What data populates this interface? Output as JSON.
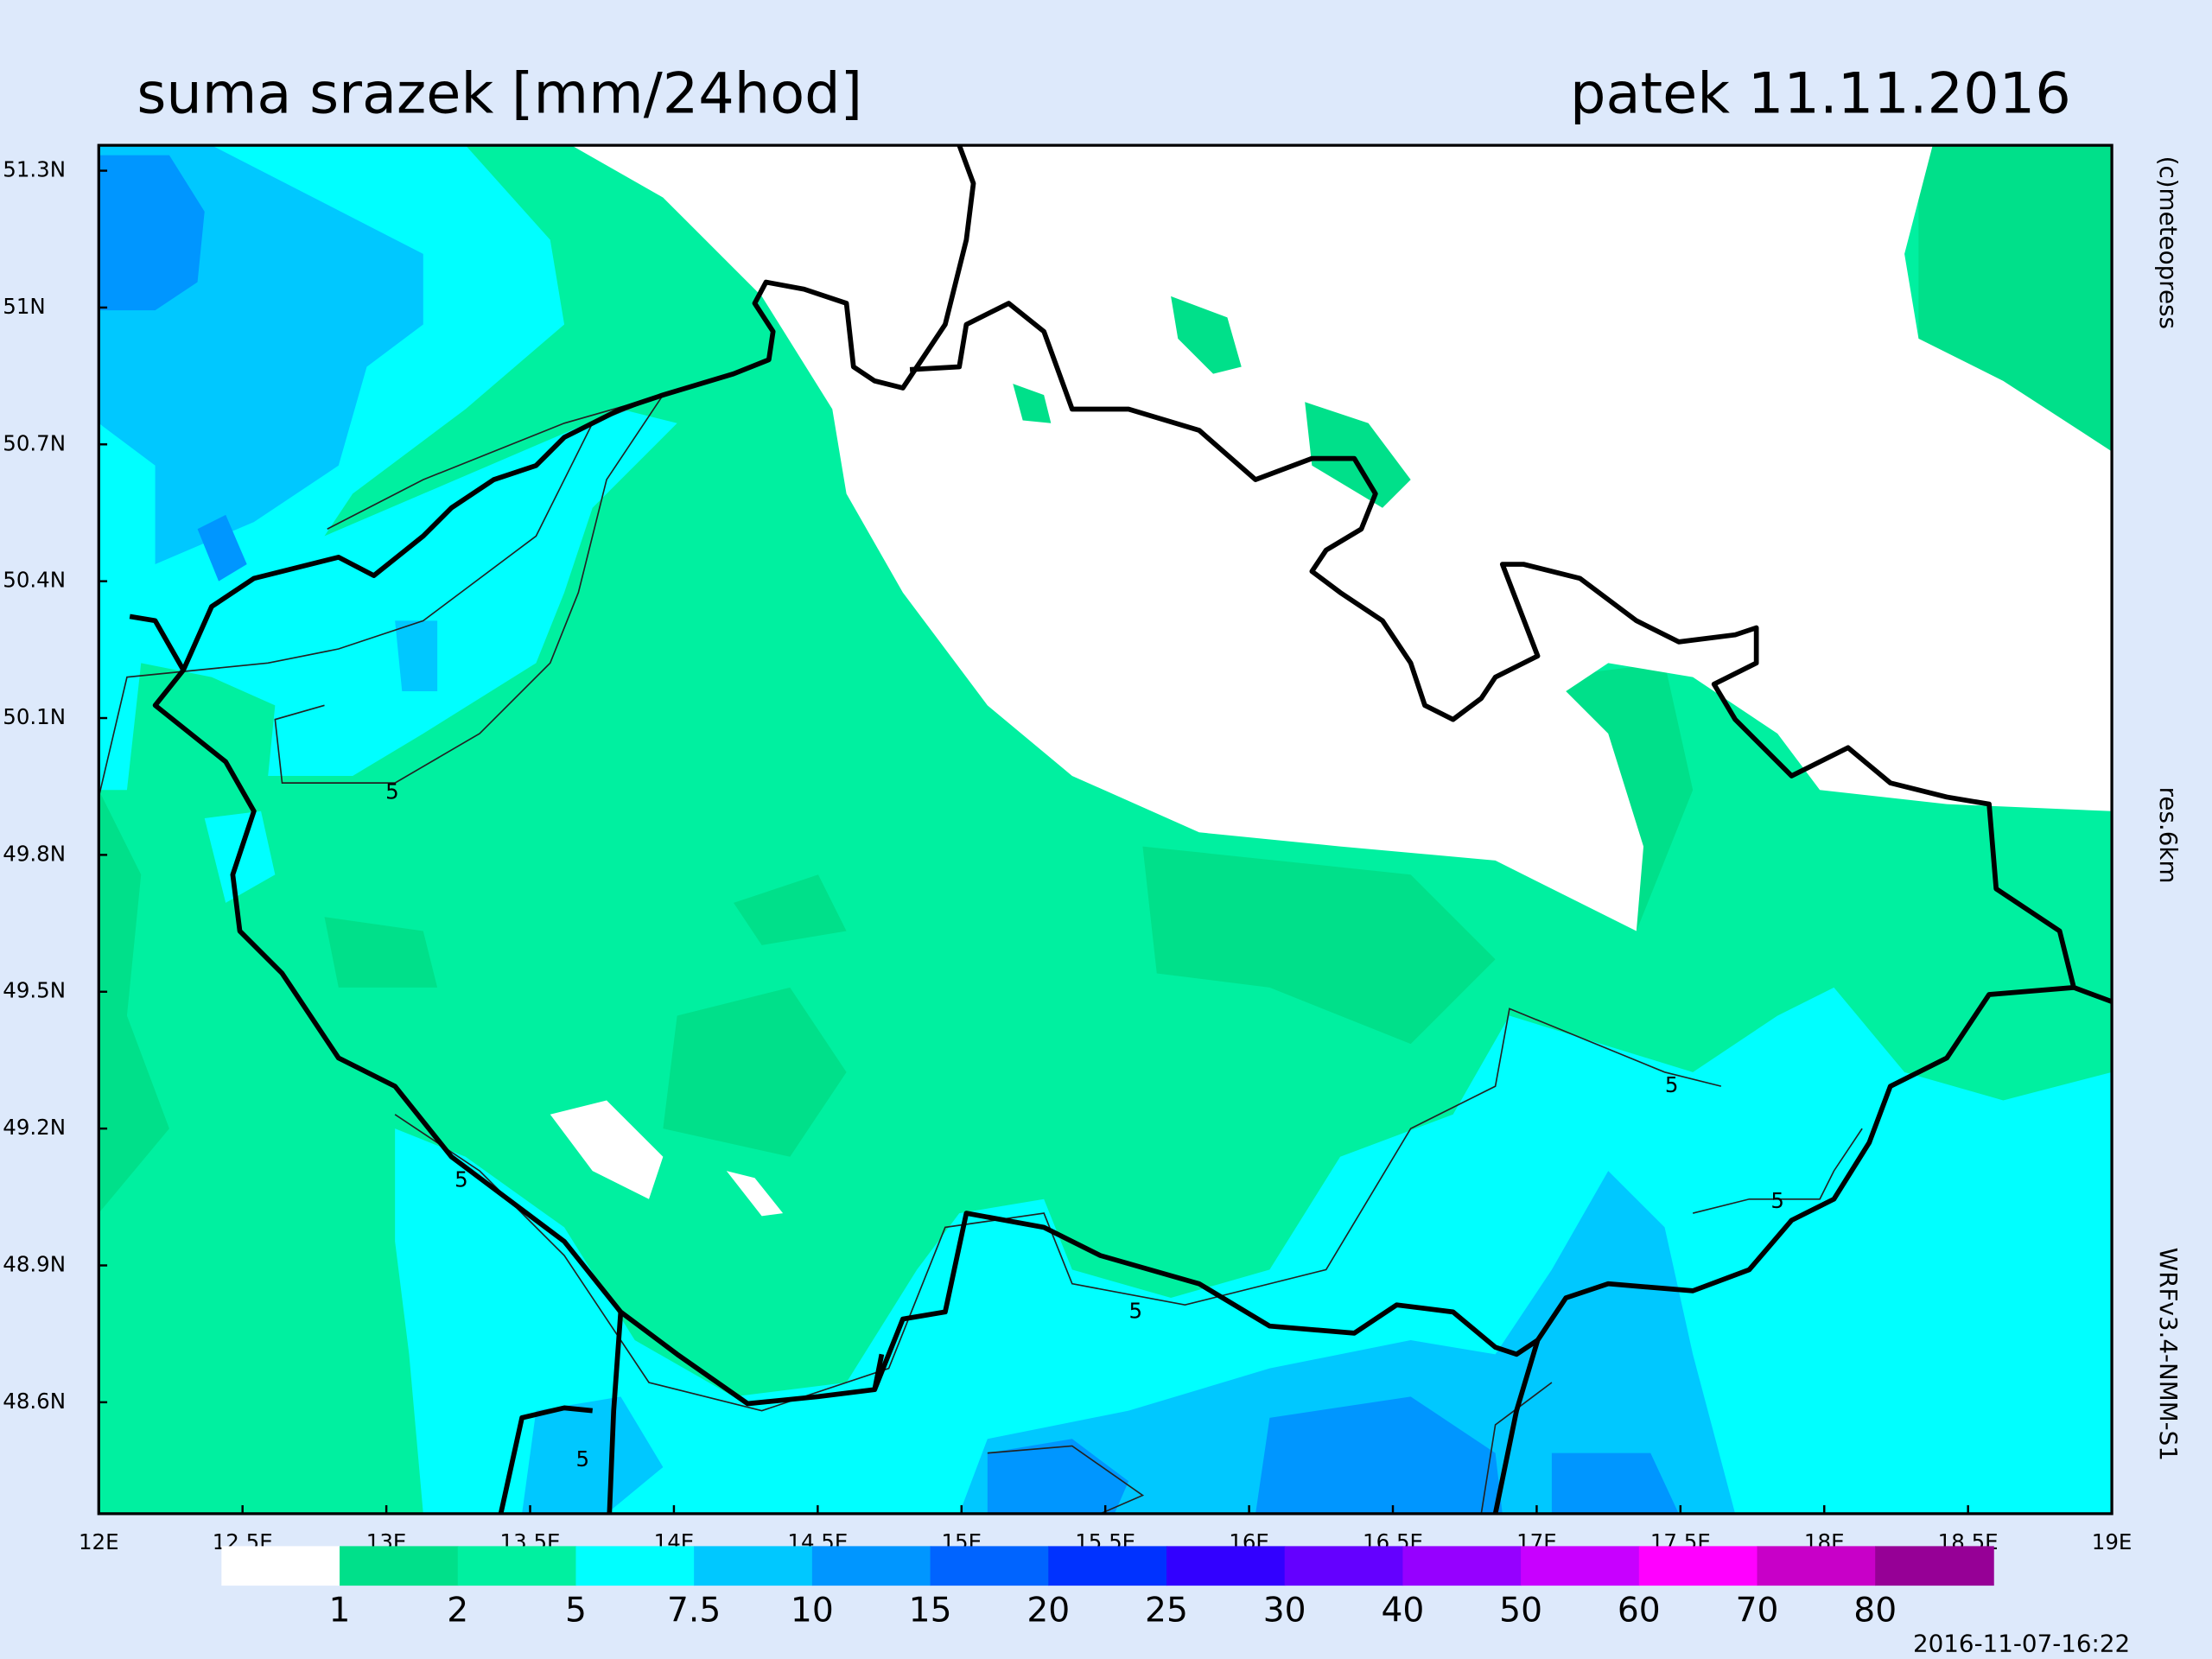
{
  "header": {
    "title": "suma srazek [mm/24hod]",
    "date": "patek 11.11.2016"
  },
  "map": {
    "lat_ticks": [
      "51.3N",
      "51N",
      "50.7N",
      "50.4N",
      "50.1N",
      "49.8N",
      "49.5N",
      "49.2N",
      "48.9N",
      "48.6N"
    ],
    "lon_ticks": [
      "12E",
      "12.5E",
      "13E",
      "13.5E",
      "14E",
      "14.5E",
      "15E",
      "15.5E",
      "16E",
      "16.5E",
      "17E",
      "17.5E",
      "18E",
      "18.5E",
      "19E"
    ],
    "contour_labels": [
      "5",
      "5",
      "5",
      "5",
      "5",
      "5"
    ]
  },
  "legend": {
    "colors": [
      "#ffffff",
      "#00e08a",
      "#00f0a0",
      "#00ffff",
      "#00c8ff",
      "#0096ff",
      "#0064ff",
      "#0032ff",
      "#3200ff",
      "#6400ff",
      "#9600ff",
      "#c800ff",
      "#ff00ff",
      "#c800c8",
      "#960096"
    ],
    "labels": [
      "1",
      "2",
      "5",
      "7.5",
      "10",
      "15",
      "20",
      "25",
      "30",
      "40",
      "50",
      "60",
      "70",
      "80"
    ]
  },
  "side": {
    "copyright": "(c)meteopress",
    "resolution": "res.6km",
    "model": "WRFv3.4-NMM-S1",
    "timestamp": "2016-11-07-16:22"
  }
}
